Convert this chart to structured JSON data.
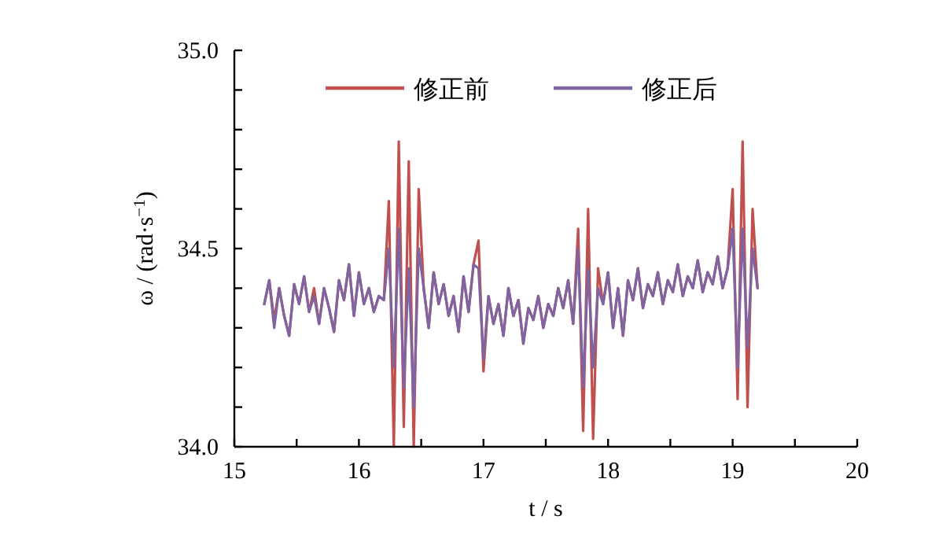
{
  "chart_data": {
    "type": "line",
    "xlabel": "t / s",
    "ylabel": "ω / (rad·s$^{−1}$)",
    "xlim": [
      15,
      20
    ],
    "ylim": [
      34.0,
      35.0
    ],
    "xticks": [
      15,
      {
        "value": 15.5,
        "label": null
      },
      16,
      {
        "value": 16.5,
        "label": null
      },
      17,
      {
        "value": 17.5,
        "label": null
      },
      18,
      {
        "value": 18.5,
        "label": null
      },
      19,
      {
        "value": 19.5,
        "label": null
      },
      20
    ],
    "yticks": [
      {
        "value": 34.0,
        "label": "34.0"
      },
      {
        "value": 34.1,
        "label": null
      },
      {
        "value": 34.2,
        "label": null
      },
      {
        "value": 34.3,
        "label": null
      },
      {
        "value": 34.4,
        "label": null
      },
      {
        "value": 34.5,
        "label": "34.5"
      },
      {
        "value": 34.6,
        "label": null
      },
      {
        "value": 34.7,
        "label": null
      },
      {
        "value": 34.8,
        "label": null
      },
      {
        "value": 34.9,
        "label": null
      },
      {
        "value": 35.0,
        "label": "35.0"
      }
    ],
    "legend": "top",
    "x": [
      15.24,
      15.28,
      15.32,
      15.36,
      15.4,
      15.44,
      15.48,
      15.52,
      15.56,
      15.6,
      15.64,
      15.68,
      15.72,
      15.76,
      15.8,
      15.84,
      15.88,
      15.92,
      15.96,
      16.0,
      16.04,
      16.08,
      16.12,
      16.16,
      16.2,
      16.24,
      16.28,
      16.32,
      16.36,
      16.4,
      16.44,
      16.48,
      16.52,
      16.56,
      16.6,
      16.64,
      16.68,
      16.72,
      16.76,
      16.8,
      16.84,
      16.88,
      16.92,
      16.96,
      17.0,
      17.04,
      17.08,
      17.12,
      17.16,
      17.2,
      17.24,
      17.28,
      17.32,
      17.36,
      17.4,
      17.44,
      17.48,
      17.52,
      17.56,
      17.6,
      17.64,
      17.68,
      17.72,
      17.76,
      17.8,
      17.84,
      17.88,
      17.92,
      17.96,
      18.0,
      18.04,
      18.08,
      18.12,
      18.16,
      18.2,
      18.24,
      18.28,
      18.32,
      18.36,
      18.4,
      18.44,
      18.48,
      18.52,
      18.56,
      18.6,
      18.64,
      18.68,
      18.72,
      18.76,
      18.8,
      18.84,
      18.88,
      18.92,
      18.96,
      19.0,
      19.04,
      19.08,
      19.12,
      19.16,
      19.2
    ],
    "series": [
      {
        "name": "修正前",
        "color": "#c0504d",
        "values": [
          34.36,
          34.42,
          34.32,
          34.4,
          34.33,
          34.28,
          34.41,
          34.36,
          34.43,
          34.34,
          34.4,
          34.31,
          34.4,
          34.35,
          34.29,
          34.42,
          34.37,
          34.46,
          34.33,
          34.44,
          34.36,
          34.4,
          34.34,
          34.38,
          34.37,
          34.62,
          34.0,
          34.77,
          34.05,
          34.72,
          34.0,
          34.65,
          34.4,
          34.3,
          34.44,
          34.36,
          34.41,
          34.33,
          34.38,
          34.29,
          34.43,
          34.34,
          34.46,
          34.52,
          34.19,
          34.38,
          34.31,
          34.36,
          34.28,
          34.4,
          34.33,
          34.37,
          34.26,
          34.35,
          34.32,
          34.38,
          34.3,
          34.36,
          34.33,
          34.4,
          34.35,
          34.42,
          34.31,
          34.55,
          34.04,
          34.6,
          34.02,
          34.45,
          34.36,
          34.44,
          34.3,
          34.4,
          34.28,
          34.42,
          34.37,
          34.45,
          34.35,
          34.41,
          34.38,
          34.44,
          34.36,
          34.42,
          34.39,
          34.46,
          34.38,
          34.43,
          34.4,
          34.47,
          34.39,
          34.44,
          34.41,
          34.48,
          34.4,
          34.45,
          34.65,
          34.12,
          34.77,
          34.1,
          34.6,
          34.4
        ]
      },
      {
        "name": "修正后",
        "color": "#8064a2",
        "values": [
          34.36,
          34.42,
          34.3,
          34.4,
          34.33,
          34.28,
          34.41,
          34.36,
          34.43,
          34.34,
          34.38,
          34.31,
          34.4,
          34.35,
          34.29,
          34.42,
          34.37,
          34.46,
          34.33,
          34.44,
          34.36,
          34.4,
          34.34,
          34.38,
          34.37,
          34.5,
          34.2,
          34.55,
          34.15,
          34.45,
          34.1,
          34.5,
          34.4,
          34.3,
          34.44,
          34.36,
          34.41,
          34.33,
          34.38,
          34.29,
          34.43,
          34.34,
          34.46,
          34.45,
          34.22,
          34.38,
          34.31,
          34.36,
          34.28,
          34.4,
          34.33,
          34.37,
          34.26,
          34.35,
          34.32,
          34.38,
          34.3,
          34.36,
          34.33,
          34.4,
          34.35,
          34.42,
          34.31,
          34.5,
          34.15,
          34.45,
          34.2,
          34.4,
          34.36,
          34.44,
          34.3,
          34.4,
          34.28,
          34.42,
          34.37,
          34.45,
          34.35,
          34.41,
          34.38,
          34.44,
          34.36,
          34.42,
          34.39,
          34.46,
          34.38,
          34.43,
          34.4,
          34.47,
          34.39,
          34.44,
          34.41,
          34.48,
          34.4,
          34.45,
          34.55,
          34.2,
          34.55,
          34.25,
          34.5,
          34.4
        ]
      }
    ]
  }
}
